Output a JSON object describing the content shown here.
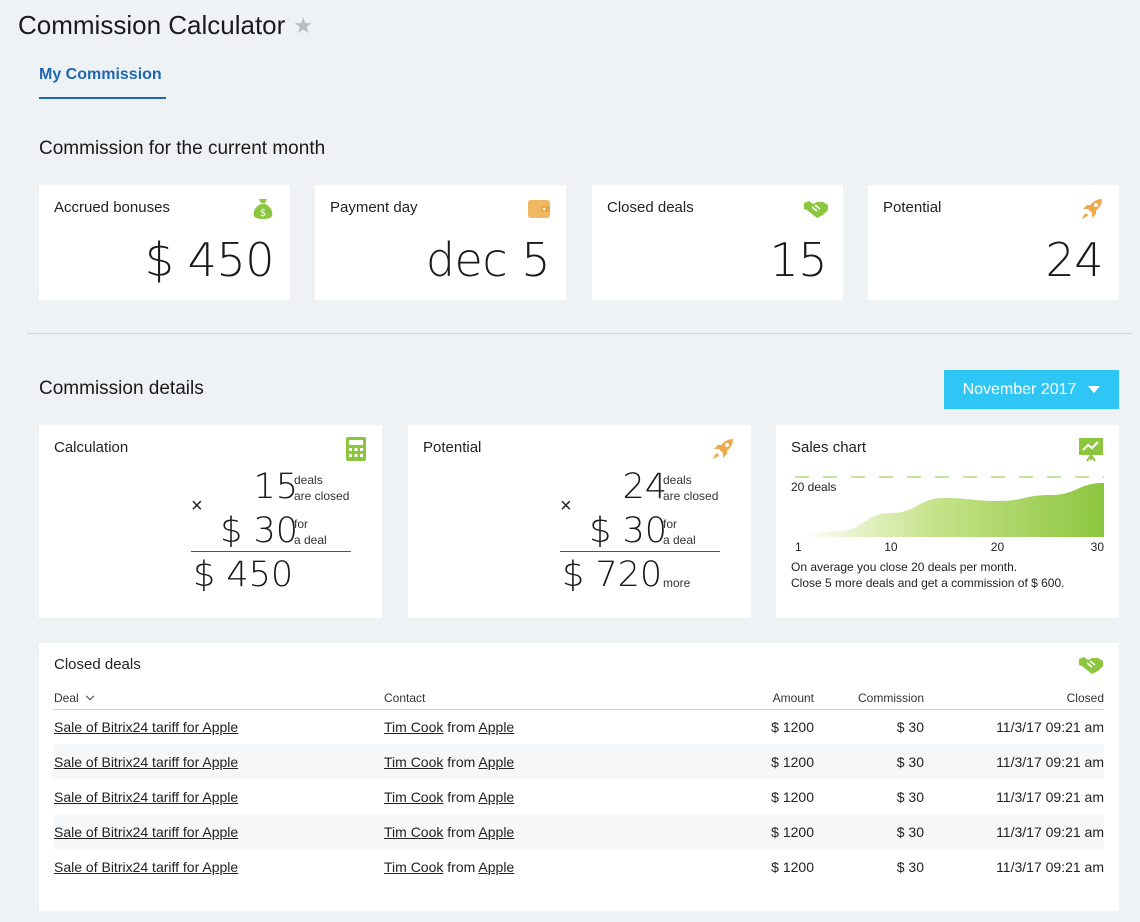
{
  "header": {
    "title": "Commission Calculator"
  },
  "tabs": [
    {
      "label": "My Commission"
    }
  ],
  "current_month": {
    "title": "Commission for the current month",
    "cards": [
      {
        "label": "Accrued bonuses",
        "value": "$ 450",
        "icon": "money-bag-icon",
        "color": "#8cc63f"
      },
      {
        "label": "Payment day",
        "value": "dec 5",
        "icon": "wallet-icon",
        "color": "#f0b860"
      },
      {
        "label": "Closed deals",
        "value": "15",
        "icon": "handshake-icon",
        "color": "#8cc63f"
      },
      {
        "label": "Potential",
        "value": "24",
        "icon": "rocket-icon",
        "color": "#f0a84c"
      }
    ]
  },
  "details": {
    "title": "Commission details",
    "month_selector": "November 2017",
    "calculation": {
      "label": "Calculation",
      "deals": "15",
      "deals_note_1": "deals",
      "deals_note_2": "are closed",
      "times": "×",
      "rate": "$ 30",
      "rate_note_1": "for",
      "rate_note_2": "a deal",
      "total": "$ 450",
      "total_note": ""
    },
    "potential": {
      "label": "Potential",
      "deals": "24",
      "deals_note_1": "deals",
      "deals_note_2": "are closed",
      "times": "×",
      "rate": "$ 30",
      "rate_note_1": "for",
      "rate_note_2": "a deal",
      "total": "$ 720",
      "total_note": "more"
    },
    "sales_chart": {
      "label": "Sales chart",
      "target_label": "20 deals",
      "x_ticks": [
        "1",
        "10",
        "20",
        "30"
      ],
      "caption_1": "On average you close 20 deals per month.",
      "caption_2": "Close 5 more deals and get a commission of $ 600."
    }
  },
  "chart_data": {
    "type": "area",
    "x": [
      1,
      5,
      10,
      15,
      20,
      25,
      30
    ],
    "y": [
      0,
      2,
      8,
      13,
      12,
      14,
      18
    ],
    "target": 20,
    "xlim": [
      1,
      30
    ],
    "ylim": [
      0,
      22
    ],
    "color": "#8cc63f",
    "x_ticks": [
      "1",
      "10",
      "20",
      "30"
    ],
    "annotation": "20 deals",
    "grid": false
  },
  "closed_deals": {
    "label": "Closed deals",
    "columns": {
      "deal": "Deal",
      "contact": "Contact",
      "amount": "Amount",
      "commission": "Commission",
      "closed": "Closed"
    },
    "rows": [
      {
        "deal": "Sale of Bitrix24 tariff for Apple",
        "person": "Tim Cook",
        "from": "from",
        "company": "Apple",
        "amount": "$ 1200",
        "commission": "$ 30",
        "closed": "11/3/17 09:21 am"
      },
      {
        "deal": "Sale of Bitrix24 tariff for Apple",
        "person": "Tim Cook",
        "from": "from",
        "company": "Apple",
        "amount": "$ 1200",
        "commission": "$ 30",
        "closed": "11/3/17 09:21 am"
      },
      {
        "deal": "Sale of Bitrix24 tariff for Apple",
        "person": "Tim Cook",
        "from": "from",
        "company": "Apple",
        "amount": "$ 1200",
        "commission": "$ 30",
        "closed": "11/3/17 09:21 am"
      },
      {
        "deal": "Sale of Bitrix24 tariff for Apple",
        "person": "Tim Cook",
        "from": "from",
        "company": "Apple",
        "amount": "$ 1200",
        "commission": "$ 30",
        "closed": "11/3/17 09:21 am"
      },
      {
        "deal": "Sale of Bitrix24 tariff for Apple",
        "person": "Tim Cook",
        "from": "from",
        "company": "Apple",
        "amount": "$ 1200",
        "commission": "$ 30",
        "closed": "11/3/17 09:21 am"
      }
    ]
  }
}
